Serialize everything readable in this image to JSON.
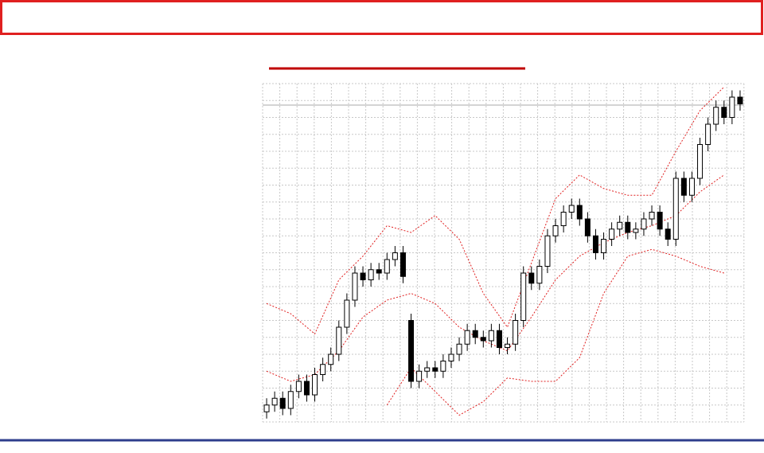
{
  "chart_data": {
    "type": "candlestick",
    "open": [
      3,
      5,
      7,
      4,
      9,
      12,
      8,
      14,
      17,
      20,
      28,
      36,
      44,
      42,
      45,
      44,
      48,
      50,
      30,
      12,
      15,
      16,
      15,
      18,
      20,
      23,
      27,
      25,
      24,
      27,
      22,
      23,
      30,
      44,
      41,
      46,
      55,
      58,
      62,
      64,
      60,
      55,
      50,
      54,
      57,
      59,
      56,
      57,
      60,
      62,
      57,
      54,
      72,
      67,
      72,
      82,
      88,
      93,
      90,
      96
    ],
    "high": [
      7,
      9,
      9,
      11,
      14,
      14,
      16,
      19,
      22,
      30,
      38,
      46,
      46,
      47,
      47,
      50,
      52,
      52,
      32,
      17,
      18,
      18,
      20,
      22,
      25,
      29,
      29,
      27,
      29,
      29,
      25,
      32,
      46,
      46,
      48,
      57,
      60,
      64,
      66,
      66,
      62,
      57,
      56,
      59,
      61,
      61,
      59,
      62,
      64,
      64,
      59,
      74,
      74,
      74,
      84,
      90,
      95,
      95,
      98,
      98
    ],
    "low": [
      1,
      3,
      2,
      2,
      7,
      6,
      6,
      12,
      15,
      18,
      26,
      34,
      40,
      40,
      42,
      42,
      46,
      41,
      10,
      10,
      13,
      13,
      13,
      16,
      18,
      21,
      23,
      22,
      22,
      20,
      20,
      21,
      28,
      39,
      39,
      44,
      53,
      56,
      60,
      58,
      53,
      48,
      48,
      52,
      55,
      54,
      54,
      55,
      58,
      55,
      52,
      52,
      65,
      65,
      70,
      80,
      86,
      88,
      88,
      92
    ],
    "close": [
      5,
      7,
      4,
      9,
      12,
      8,
      14,
      17,
      20,
      28,
      36,
      44,
      42,
      45,
      44,
      48,
      50,
      43,
      12,
      15,
      16,
      15,
      18,
      20,
      23,
      27,
      25,
      24,
      27,
      22,
      23,
      30,
      44,
      41,
      46,
      55,
      58,
      62,
      64,
      60,
      55,
      50,
      54,
      57,
      59,
      56,
      57,
      60,
      62,
      57,
      54,
      72,
      67,
      72,
      82,
      88,
      93,
      90,
      96,
      94
    ],
    "ylim": [
      0,
      100
    ],
    "xlim": [
      -0.5,
      59.5
    ],
    "bands": {
      "color": "#e02020",
      "x": [
        0,
        3,
        6,
        9,
        12,
        15,
        18,
        21,
        24,
        27,
        30,
        33,
        36,
        39,
        42,
        45,
        48,
        51,
        54,
        57
      ],
      "series": [
        {
          "values": [
            35,
            32,
            26,
            42,
            49,
            58,
            56,
            61,
            54,
            38,
            28,
            47,
            66,
            73,
            69,
            67,
            67,
            80,
            92,
            99
          ]
        },
        {
          "values": [
            15,
            12,
            14,
            21,
            31,
            36,
            38,
            35,
            28,
            24,
            21,
            31,
            42,
            49,
            53,
            56,
            58,
            61,
            68,
            73
          ]
        },
        {
          "values": [
            null,
            null,
            null,
            null,
            null,
            5,
            16,
            9,
            2,
            6,
            13,
            12,
            12,
            19,
            38,
            49,
            51,
            49,
            46,
            44
          ]
        }
      ]
    }
  }
}
